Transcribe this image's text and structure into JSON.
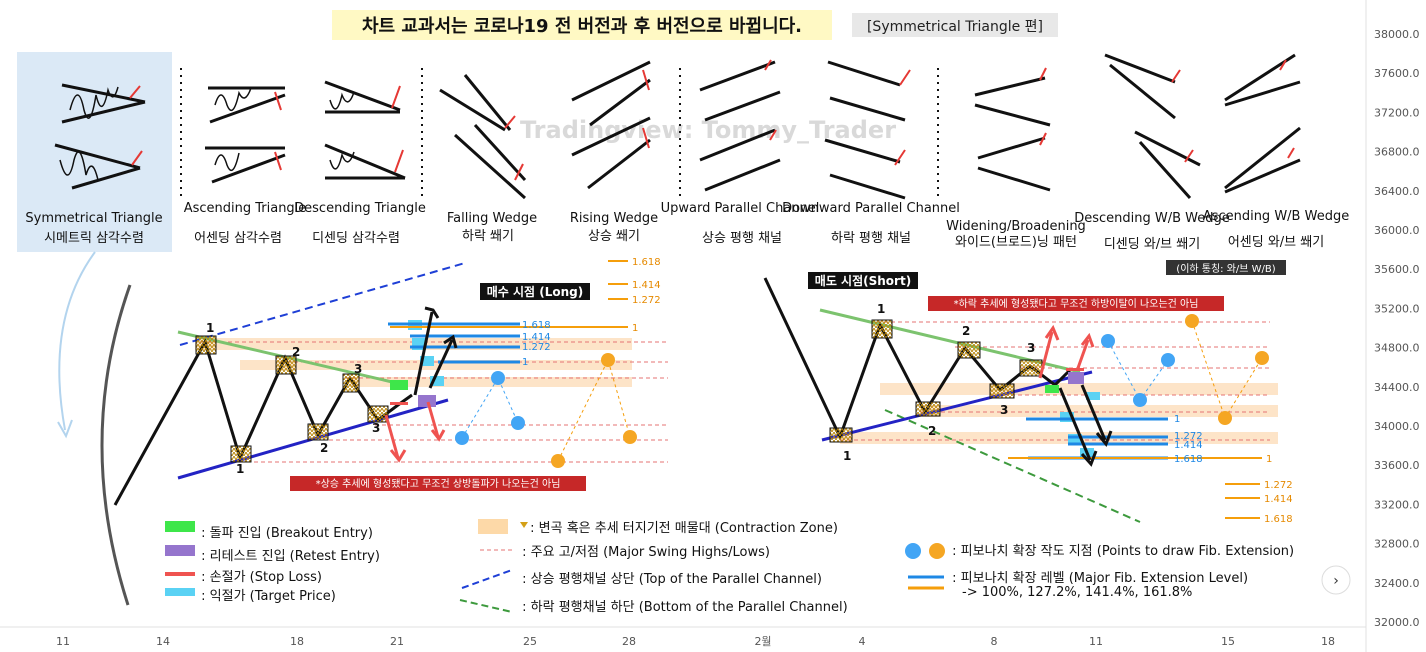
{
  "header": {
    "title": "차트 교과서는 코로나19 전 버전과 후 버전으로  바뀝니다.",
    "tag": "[Symmetrical Triangle 편]"
  },
  "watermark": "Tradingview: Tommy_Trader",
  "patterns": [
    {
      "en": "Symmetrical Triangle",
      "ko": "시메트릭 삼각수렴",
      "selected": true
    },
    {
      "en": "Ascending Triangle",
      "ko": "어센딩 삼각수렴"
    },
    {
      "en": "Descending Triangle",
      "ko": "디센딩 삼각수렴"
    },
    {
      "en": "Falling Wedge",
      "ko": "하락 쐐기"
    },
    {
      "en": "Rising Wedge",
      "ko": "상승 쐐기"
    },
    {
      "en": "Upward Parallel Channel",
      "ko": "상승 평행 채널"
    },
    {
      "en": "Downward Parallel Channel",
      "ko": "하락 평행 채널"
    },
    {
      "en": "Widening/Broadening",
      "ko": "와이드(브로드)닝 패턴"
    },
    {
      "en": "Descending W/B Wedge",
      "ko": "디센딩 와/브 쐐기"
    },
    {
      "en": "Ascending W/B Wedge",
      "ko": "어센딩 와/브 쐐기"
    }
  ],
  "wb_note": "(이하 통칭: 와/브 W/B)",
  "long_label": "매수 시점 (Long)",
  "short_label": "매도 시점(Short)",
  "long_note": "*상승 추세에 형성됐다고 무조건 상방돌파가 나오는건 아님",
  "short_note": "*하락 추세에 형성됐다고 무조건 하방이탈이 나오는건 아님",
  "swing_labels": {
    "one": "1",
    "two": "2",
    "three": "3"
  },
  "fib_labels": {
    "l1": "1",
    "l1272": "1.272",
    "l1414": "1.414",
    "l1618": "1.618"
  },
  "legend": [
    {
      "key": "breakout",
      "text": " : 돌파 진입 (Breakout Entry)",
      "color": "#3ee64a"
    },
    {
      "key": "retest",
      "text": " : 리테스트 진입 (Retest Entry)",
      "color": "#9575cd"
    },
    {
      "key": "stop",
      "text": " : 손절가 (Stop Loss)",
      "color": "#ef5350"
    },
    {
      "key": "target",
      "text": " : 익절가 (Target Price)",
      "color": "#5ad2f4"
    },
    {
      "key": "contraction",
      "text": " : 변곡 혹은 추세 터지기전 매물대 (Contraction Zone)",
      "color": "#fdd9a8"
    },
    {
      "key": "swing",
      "text": " : 주요 고/저점 (Major Swing Highs/Lows)",
      "color": "#e57373"
    },
    {
      "key": "top",
      "text": " : 상승 평행채널 상단 (Top of the Parallel Channel)",
      "color": "#1e3fd6"
    },
    {
      "key": "bottom",
      "text": " : 하락 평행채널 하단 (Bottom of the Parallel Channel)",
      "color": "#3d9a3d"
    },
    {
      "key": "points",
      "text": " : 피보나치 확장 작도 지점 (Points to draw Fib. Extension)",
      "color": "#42a5f5"
    },
    {
      "key": "levels",
      "text": " : 피보나치 확장 레벨 (Major Fib. Extension Level)",
      "color": "#1e88e5"
    },
    {
      "key": "levels2",
      "text": "-> 100%, 127.2%, 141.4%, 161.8%",
      "color": "#f59e0b"
    }
  ],
  "colors": {
    "accent_orange": "#f59e0b",
    "accent_blue": "#1e88e5",
    "red": "#ef5350",
    "green_line": "#7cc36e"
  },
  "chart_data": {
    "type": "line",
    "y_axis": {
      "side": "right",
      "min": 32000,
      "max": 38000,
      "step": 400
    },
    "y_ticks": [
      "38000.0",
      "37600.0",
      "37200.0",
      "36800.0",
      "36400.0",
      "36000.0",
      "35600.0",
      "35200.0",
      "34800.0",
      "34400.0",
      "34000.0",
      "33600.0",
      "33200.0",
      "32800.0",
      "32400.0",
      "32000.0"
    ],
    "x_ticks": [
      "11",
      "14",
      "18",
      "21",
      "25",
      "28",
      "2월",
      "4",
      "8",
      "11",
      "15",
      "18"
    ]
  }
}
